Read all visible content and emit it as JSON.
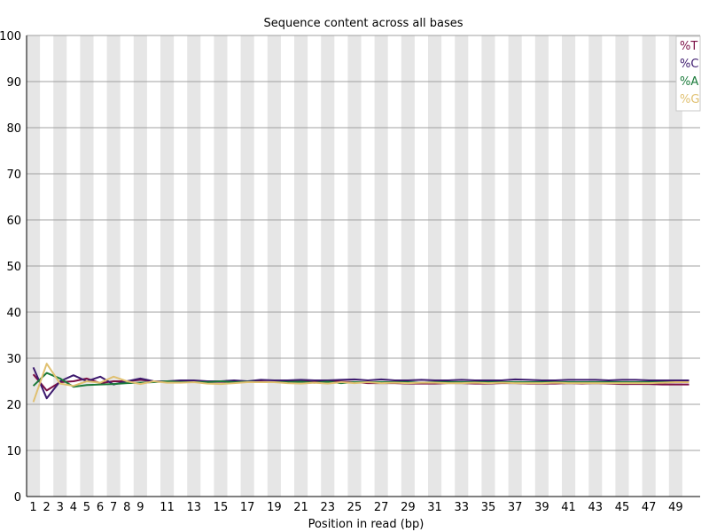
{
  "chart_data": {
    "type": "line",
    "title": "Sequence content across all bases",
    "xlabel": "Position in read (bp)",
    "ylabel": "",
    "ylim": [
      0,
      100
    ],
    "yticks": [
      0,
      10,
      20,
      30,
      40,
      50,
      60,
      70,
      80,
      90,
      100
    ],
    "grid": true,
    "legend_position": "top-right",
    "categories": [
      "1",
      "2",
      "3",
      "4",
      "5",
      "6",
      "7",
      "8",
      "9",
      "10",
      "11",
      "12",
      "13",
      "14",
      "15",
      "16",
      "17",
      "18",
      "19",
      "20",
      "21",
      "22",
      "23",
      "24",
      "25",
      "26",
      "27",
      "28",
      "29",
      "30",
      "31",
      "32",
      "33",
      "34",
      "35",
      "36",
      "37",
      "38",
      "39",
      "40",
      "41",
      "42",
      "43",
      "44",
      "45",
      "46",
      "47",
      "48",
      "49",
      "50"
    ],
    "xtick_labels": [
      "1",
      "2",
      "3",
      "4",
      "5",
      "6",
      "7",
      "8",
      "9",
      "",
      "11",
      "",
      "13",
      "",
      "15",
      "",
      "17",
      "",
      "19",
      "",
      "21",
      "",
      "23",
      "",
      "25",
      "",
      "27",
      "",
      "29",
      "",
      "31",
      "",
      "33",
      "",
      "35",
      "",
      "37",
      "",
      "39",
      "",
      "41",
      "",
      "43",
      "",
      "45",
      "",
      "47",
      "",
      "49",
      ""
    ],
    "series": [
      {
        "name": "%T",
        "color": "#7b0f45",
        "values": [
          26.5,
          23.0,
          24.8,
          25.0,
          25.6,
          24.6,
          25.0,
          25.0,
          25.3,
          25.0,
          25.0,
          25.0,
          25.0,
          24.8,
          24.9,
          24.8,
          25.0,
          24.9,
          24.8,
          24.9,
          25.0,
          24.8,
          25.0,
          24.9,
          24.8,
          24.6,
          24.6,
          24.6,
          24.5,
          24.5,
          24.5,
          24.6,
          24.6,
          24.5,
          24.5,
          24.6,
          24.6,
          24.5,
          24.5,
          24.5,
          24.6,
          24.5,
          24.6,
          24.5,
          24.4,
          24.4,
          24.4,
          24.3,
          24.3,
          24.3
        ]
      },
      {
        "name": "%C",
        "color": "#3d1a6e",
        "values": [
          28.0,
          21.3,
          25.0,
          26.3,
          25.0,
          26.0,
          24.3,
          25.0,
          25.6,
          25.0,
          25.0,
          25.2,
          25.2,
          25.0,
          25.0,
          25.2,
          25.0,
          25.3,
          25.2,
          25.2,
          25.3,
          25.2,
          25.2,
          25.3,
          25.4,
          25.2,
          25.4,
          25.2,
          25.2,
          25.3,
          25.2,
          25.2,
          25.3,
          25.2,
          25.2,
          25.2,
          25.4,
          25.3,
          25.2,
          25.2,
          25.3,
          25.3,
          25.3,
          25.2,
          25.3,
          25.3,
          25.2,
          25.2,
          25.2,
          25.2
        ]
      },
      {
        "name": "%A",
        "color": "#1a7a3a",
        "values": [
          24.0,
          26.8,
          25.6,
          23.8,
          24.2,
          24.3,
          24.4,
          24.6,
          24.7,
          24.8,
          25.0,
          24.8,
          24.8,
          24.8,
          25.0,
          24.8,
          24.9,
          24.8,
          24.8,
          24.8,
          24.9,
          24.7,
          24.9,
          24.6,
          24.8,
          24.8,
          24.8,
          24.8,
          24.8,
          24.7,
          24.8,
          24.8,
          24.8,
          24.8,
          24.8,
          24.8,
          24.8,
          24.8,
          24.8,
          24.8,
          24.8,
          24.8,
          24.8,
          24.8,
          24.8,
          24.8,
          24.8,
          24.8,
          24.8,
          24.8
        ]
      },
      {
        "name": "%G",
        "color": "#e0c070",
        "values": [
          20.5,
          28.8,
          24.5,
          24.0,
          25.0,
          24.7,
          26.0,
          25.0,
          24.4,
          25.0,
          24.7,
          24.7,
          24.8,
          24.5,
          24.4,
          24.6,
          24.8,
          24.8,
          24.8,
          24.6,
          24.5,
          24.7,
          24.5,
          24.8,
          24.6,
          24.8,
          24.6,
          24.7,
          24.6,
          24.7,
          24.7,
          24.6,
          24.6,
          24.7,
          24.6,
          24.7,
          24.6,
          24.6,
          24.6,
          24.7,
          24.6,
          24.6,
          24.6,
          24.6,
          24.6,
          24.6,
          24.6,
          24.7,
          24.8,
          24.8
        ]
      }
    ]
  }
}
